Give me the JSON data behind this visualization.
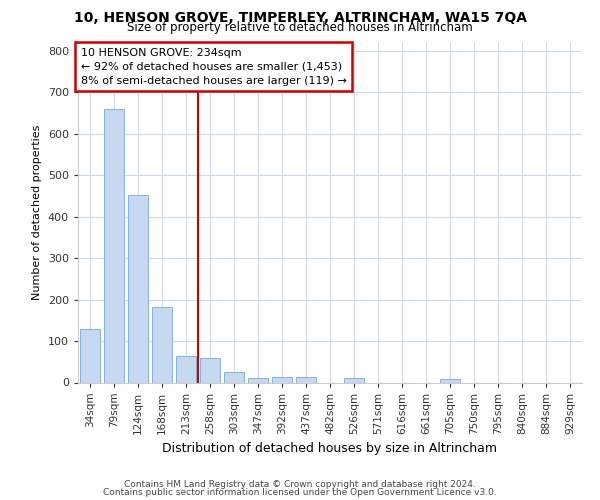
{
  "title": "10, HENSON GROVE, TIMPERLEY, ALTRINCHAM, WA15 7QA",
  "subtitle": "Size of property relative to detached houses in Altrincham",
  "xlabel": "Distribution of detached houses by size in Altrincham",
  "ylabel": "Number of detached properties",
  "bar_labels": [
    "34sqm",
    "79sqm",
    "124sqm",
    "168sqm",
    "213sqm",
    "258sqm",
    "303sqm",
    "347sqm",
    "392sqm",
    "437sqm",
    "482sqm",
    "526sqm",
    "571sqm",
    "616sqm",
    "661sqm",
    "705sqm",
    "750sqm",
    "795sqm",
    "840sqm",
    "884sqm",
    "929sqm"
  ],
  "bar_values": [
    128,
    660,
    452,
    183,
    65,
    60,
    25,
    12,
    14,
    13,
    0,
    10,
    0,
    0,
    0,
    8,
    0,
    0,
    0,
    0,
    0
  ],
  "bar_color": "#c5d8f0",
  "bar_edge_color": "#7aa8d4",
  "property_line_x": 4.5,
  "annotation_line1": "10 HENSON GROVE: 234sqm",
  "annotation_line2": "← 92% of detached houses are smaller (1,453)",
  "annotation_line3": "8% of semi-detached houses are larger (119) →",
  "annotation_box_color": "#ffffff",
  "annotation_box_edge": "#cc0000",
  "vline_color": "#cc0000",
  "ylim": [
    0,
    820
  ],
  "yticks": [
    0,
    100,
    200,
    300,
    400,
    500,
    600,
    700,
    800
  ],
  "footer1": "Contains HM Land Registry data © Crown copyright and database right 2024.",
  "footer2": "Contains public sector information licensed under the Open Government Licence v3.0.",
  "bg_color": "#ffffff",
  "plot_bg_color": "#ffffff",
  "grid_color": "#d0d8e8"
}
